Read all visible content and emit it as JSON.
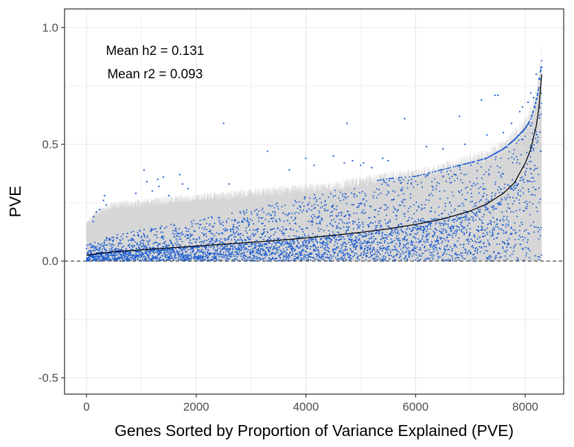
{
  "chart_data": {
    "type": "scatter",
    "title": "",
    "xlabel": "Genes Sorted by Proportion of Variance Explained (PVE)",
    "ylabel": "PVE",
    "xlim": [
      -400,
      8700
    ],
    "ylim": [
      -0.57,
      1.08
    ],
    "x_ticks": [
      0,
      2000,
      4000,
      6000,
      8000
    ],
    "x_tick_labels": [
      "0",
      "2000",
      "4000",
      "6000",
      "8000"
    ],
    "y_ticks": [
      -0.5,
      0.0,
      0.5,
      1.0
    ],
    "y_tick_labels": [
      "-0.5",
      "0.0",
      "0.5",
      "1.0"
    ],
    "grid": true,
    "n_genes": 8300,
    "reference_line": {
      "y": 0.0,
      "style": "dashed"
    },
    "annotations": [
      {
        "text": "Mean h2 =  0.131"
      },
      {
        "text": "Mean r2 =  0.093"
      }
    ],
    "series": [
      {
        "kind": "line",
        "x": [
          0,
          200,
          500,
          1000,
          1500,
          2000,
          2500,
          3000,
          3500,
          4000,
          4500,
          5000,
          5500,
          6000,
          6500,
          7000,
          7300,
          7600,
          7800,
          8000,
          8100,
          8200,
          8250,
          8300
        ],
        "y": [
          0.025,
          0.032,
          0.04,
          0.048,
          0.056,
          0.064,
          0.072,
          0.08,
          0.089,
          0.099,
          0.11,
          0.123,
          0.138,
          0.157,
          0.18,
          0.215,
          0.245,
          0.29,
          0.335,
          0.42,
          0.48,
          0.58,
          0.66,
          0.8
        ],
        "color": "#000000"
      },
      {
        "kind": "interval-band",
        "x": [
          0,
          200,
          500,
          1000,
          1500,
          2000,
          2500,
          3000,
          3500,
          4000,
          4500,
          5000,
          5500,
          6000,
          6500,
          7000,
          7300,
          7600,
          7800,
          8000,
          8100,
          8200,
          8250,
          8300
        ],
        "upper": [
          0.16,
          0.21,
          0.24,
          0.25,
          0.26,
          0.27,
          0.28,
          0.29,
          0.3,
          0.31,
          0.32,
          0.34,
          0.36,
          0.37,
          0.4,
          0.43,
          0.45,
          0.49,
          0.53,
          0.58,
          0.62,
          0.7,
          0.76,
          0.88
        ],
        "color": "#cccccc"
      },
      {
        "kind": "points",
        "color": "#1f5fd1",
        "x": [
          120,
          130,
          180,
          240,
          310,
          330,
          360,
          900,
          1050,
          1100,
          1200,
          1300,
          1320,
          1400,
          1500,
          1700,
          1750,
          1850,
          2500,
          2600,
          3300,
          3700,
          4000,
          4150,
          4500,
          4700,
          4750,
          4850,
          5000,
          5050,
          5200,
          5400,
          5500,
          5800,
          6200,
          6500,
          6800,
          6900,
          7200,
          7300,
          7450,
          7500,
          7600,
          7750,
          7900,
          7950,
          8050,
          8100,
          8150,
          8200,
          8250,
          8300
        ],
        "y": [
          0.17,
          0.19,
          0.21,
          0.22,
          0.26,
          0.28,
          0.24,
          0.29,
          0.39,
          0.34,
          0.3,
          0.35,
          0.32,
          0.36,
          0.28,
          0.37,
          0.33,
          0.31,
          0.59,
          0.33,
          0.47,
          0.39,
          0.44,
          0.41,
          0.45,
          0.42,
          0.59,
          0.43,
          0.41,
          0.42,
          0.4,
          0.44,
          0.43,
          0.61,
          0.49,
          0.48,
          0.62,
          0.5,
          0.69,
          0.54,
          0.71,
          0.71,
          0.55,
          0.59,
          0.64,
          0.66,
          0.68,
          0.72,
          0.7,
          0.8,
          0.78,
          0.83
        ]
      }
    ]
  }
}
